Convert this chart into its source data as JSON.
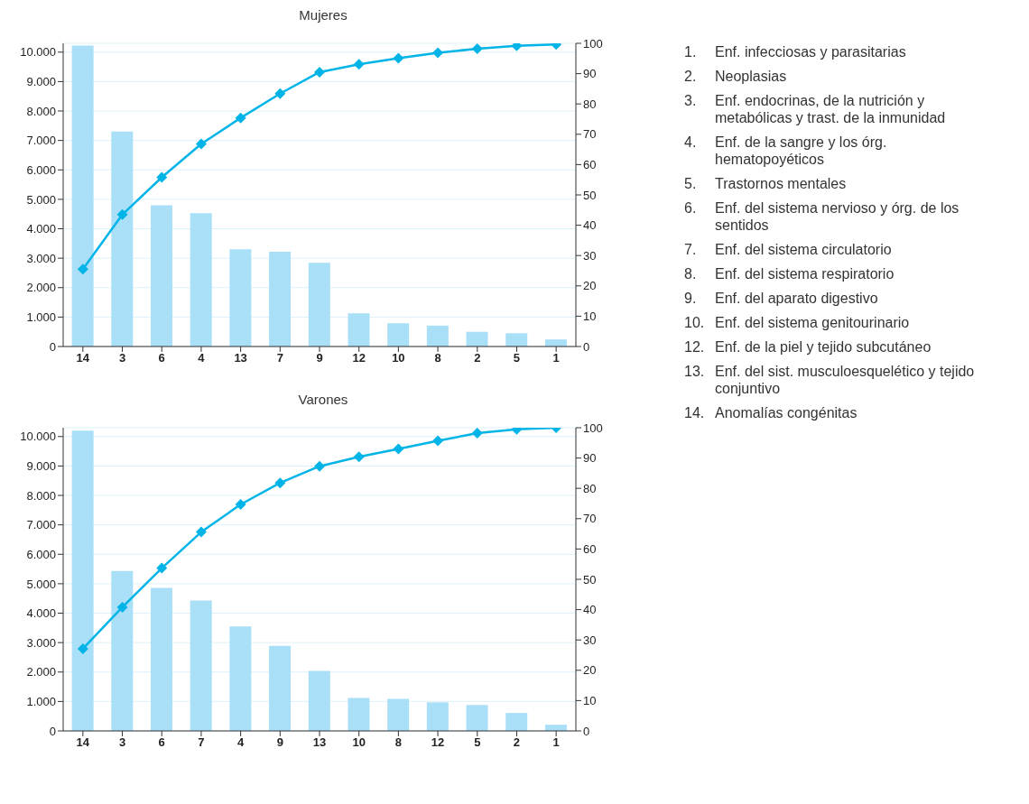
{
  "chart_data": [
    {
      "type": "bar",
      "title": "Mujeres",
      "categories": [
        "14",
        "3",
        "6",
        "4",
        "13",
        "7",
        "9",
        "12",
        "10",
        "8",
        "2",
        "5",
        "1"
      ],
      "series": [
        {
          "type": "bar",
          "color": "#aadff8",
          "values": [
            10220,
            7300,
            4800,
            4530,
            3300,
            3220,
            2840,
            1130,
            790,
            710,
            500,
            450,
            240
          ]
        },
        {
          "type": "line",
          "axis": "y2",
          "color": "#00b4e8",
          "marker": "diamond",
          "line_style": "solid",
          "values": [
            25.5,
            43.5,
            55.8,
            66.8,
            75.4,
            83.4,
            90.5,
            93.1,
            95.1,
            96.9,
            98.2,
            99.2,
            99.6
          ]
        }
      ],
      "ylim": [
        0,
        10300
      ],
      "yticks": [
        0,
        {
          "value": 1000,
          "label": "1.000"
        },
        {
          "value": 2000,
          "label": "2.000"
        },
        {
          "value": 3000,
          "label": "3.000"
        },
        {
          "value": 4000,
          "label": "4.000"
        },
        {
          "value": 5000,
          "label": "5.000"
        },
        {
          "value": 6000,
          "label": "6.000"
        },
        {
          "value": 7000,
          "label": "7.000"
        },
        {
          "value": 8000,
          "label": "8.000"
        },
        {
          "value": 9000,
          "label": "9.000"
        },
        {
          "value": 10000,
          "label": "10.000"
        }
      ],
      "y2lim": [
        0,
        100
      ],
      "y2ticks": [
        0,
        10,
        20,
        30,
        40,
        50,
        60,
        70,
        80,
        90,
        100
      ],
      "grid": "y",
      "legend": false
    },
    {
      "type": "bar",
      "title": "Varones",
      "categories": [
        "14",
        "3",
        "6",
        "7",
        "4",
        "9",
        "13",
        "10",
        "8",
        "12",
        "5",
        "2",
        "1"
      ],
      "series": [
        {
          "type": "bar",
          "color": "#aadff8",
          "values": [
            10200,
            5430,
            4860,
            4430,
            3550,
            2890,
            2040,
            1120,
            1090,
            970,
            880,
            610,
            210
          ]
        },
        {
          "type": "line",
          "axis": "y2",
          "color": "#00b4e8",
          "marker": "diamond",
          "line_style": "solid",
          "values": [
            27.1,
            40.8,
            53.7,
            65.6,
            74.7,
            81.8,
            87.3,
            90.4,
            93.0,
            95.7,
            98.2,
            99.5,
            100
          ]
        }
      ],
      "ylim": [
        0,
        10300
      ],
      "yticks": [
        0,
        {
          "value": 1000,
          "label": "1.000"
        },
        {
          "value": 2000,
          "label": "2.000"
        },
        {
          "value": 3000,
          "label": "3.000"
        },
        {
          "value": 4000,
          "label": "4.000"
        },
        {
          "value": 5000,
          "label": "5.000"
        },
        {
          "value": 6000,
          "label": "6.000"
        },
        {
          "value": 7000,
          "label": "7.000"
        },
        {
          "value": 8000,
          "label": "8.000"
        },
        {
          "value": 9000,
          "label": "9.000"
        },
        {
          "value": 10000,
          "label": "10.000"
        }
      ],
      "y2lim": [
        0,
        100
      ],
      "y2ticks": [
        0,
        10,
        20,
        30,
        40,
        50,
        60,
        70,
        80,
        90,
        100
      ],
      "grid": "y",
      "legend": false
    },
    {
      "type": "other",
      "annotations": [
        "1.\tEnf. infecciosas y parasitarias",
        "2.\tNeoplasias",
        "3.\tEnf. endocrinas, de la nutrición y metabólicas y trast. de la inmunidad",
        "4.\tEnf. de la sangre y los órg. hematopoyéticos",
        "5.\tTrastornos mentales",
        "6.\tEnf. del sistema nervioso y órg. de los sentidos",
        "7.\tEnf. del sistema circulatorio",
        "8.\tEnf. del sistema respiratorio",
        "9.\tEnf. del aparato digestivo",
        "10.\tEnf. del sistema genitourinario",
        "12.\tEnf. de la piel y tejido subcutáneo",
        "13.\tEnf. del sist. musculoesquelético y tejido conjuntivo",
        "14.\tAnomalías congénitas"
      ]
    }
  ]
}
